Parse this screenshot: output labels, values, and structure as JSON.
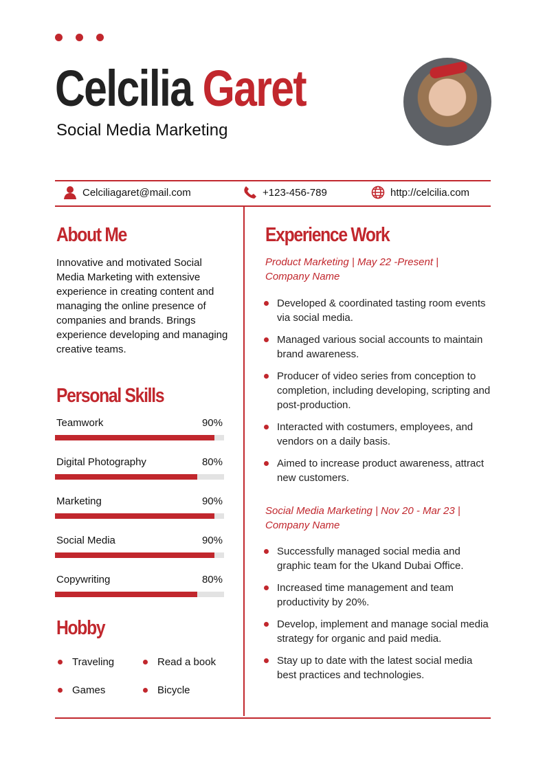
{
  "header": {
    "first_name": "Celcilia",
    "last_name": "Garet",
    "title": "Social Media Marketing"
  },
  "colors": {
    "accent": "#c1272d"
  },
  "contact": {
    "email": "Celciliagaret@mail.com",
    "phone": "+123-456-789",
    "website": "http://celcilia.com"
  },
  "about": {
    "heading": "About Me",
    "text": "Innovative and motivated Social Media Marketing with extensive experience in creating content and managing the online presence of companies and brands. Brings experience developing and managing creative teams."
  },
  "skills": {
    "heading": "Personal Skills",
    "items": [
      {
        "label": "Teamwork",
        "percent_label": "90%",
        "value": 90
      },
      {
        "label": "Digital Photography",
        "percent_label": "80%",
        "value": 80
      },
      {
        "label": "Marketing",
        "percent_label": "90%",
        "value": 90
      },
      {
        "label": "Social Media",
        "percent_label": "90%",
        "value": 90
      },
      {
        "label": "Copywriting",
        "percent_label": "80%",
        "value": 80
      }
    ]
  },
  "hobby": {
    "heading": "Hobby",
    "items": [
      "Traveling",
      "Read a book",
      "Games",
      "Bicycle"
    ]
  },
  "experience": {
    "heading": "Experience Work",
    "jobs": [
      {
        "title": "Product Marketing | May 22 -Present | Company Name",
        "bullets": [
          "Developed & coordinated tasting room events via social media.",
          "Managed various social accounts to maintain brand awareness.",
          "Producer of video series from conception to completion, including developing, scripting and post-production.",
          "Interacted with costumers, employees, and vendors on a daily basis.",
          "Aimed to increase product awareness, attract new customers."
        ]
      },
      {
        "title": "Social Media Marketing | Nov 20 - Mar 23 | Company Name",
        "bullets": [
          "Successfully managed social media and graphic team for the Ukand Dubai Office.",
          "Increased time management and team productivity by 20%.",
          "Develop, implement and manage social media strategy for organic and paid media.",
          "Stay up to date with the latest social media best practices and technologies."
        ]
      }
    ]
  }
}
